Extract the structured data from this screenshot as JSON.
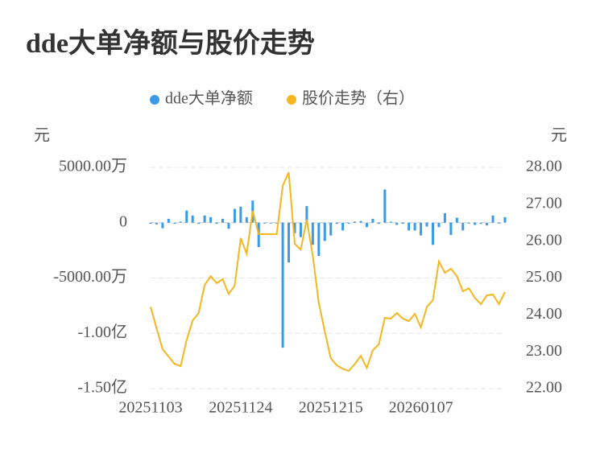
{
  "chart_data": {
    "type": "bar_line",
    "title": "dde大单净额与股价走势",
    "y_unit": "元",
    "y2_unit": "元",
    "categories": [
      "20251103",
      null,
      null,
      null,
      null,
      null,
      null,
      null,
      null,
      null,
      null,
      null,
      null,
      null,
      null,
      "20251124",
      null,
      null,
      null,
      null,
      null,
      null,
      null,
      null,
      null,
      null,
      null,
      null,
      null,
      null,
      "20251215",
      null,
      null,
      null,
      null,
      null,
      null,
      null,
      null,
      null,
      null,
      null,
      null,
      null,
      null,
      "20260107",
      null,
      null,
      null,
      null,
      null,
      null,
      null,
      null,
      null,
      null,
      null,
      null,
      null,
      null
    ],
    "series": [
      {
        "name": "dde大单净额",
        "type": "bar",
        "color": "#3a9ae8",
        "values": [
          -100,
          -150,
          -500,
          350,
          -100,
          100,
          1100,
          650,
          -100,
          650,
          500,
          -100,
          350,
          -550,
          1250,
          1450,
          500,
          2000,
          -2200,
          0,
          0,
          0,
          -11300,
          -3600,
          -950,
          -1300,
          1500,
          -2000,
          -3000,
          -1650,
          -1150,
          -100,
          -700,
          -100,
          100,
          150,
          -400,
          350,
          -100,
          3000,
          100,
          -200,
          -100,
          -700,
          -700,
          -1150,
          -350,
          -2000,
          -400,
          850,
          -1100,
          450,
          -700,
          -50,
          -200,
          -100,
          -250,
          650,
          -50,
          500
        ]
      },
      {
        "name": "股价走势（右）",
        "type": "line",
        "axis": "y2",
        "color": "#f5b720",
        "values": [
          24.22,
          23.63,
          23.07,
          22.87,
          22.67,
          22.61,
          23.31,
          23.85,
          24.05,
          24.81,
          25.05,
          24.86,
          24.97,
          24.57,
          24.79,
          26.08,
          25.66,
          26.82,
          26.19,
          26.19,
          26.19,
          26.19,
          27.5,
          27.87,
          25.93,
          25.77,
          26.58,
          25.6,
          24.33,
          23.55,
          22.83,
          22.63,
          22.54,
          22.48,
          22.67,
          22.89,
          22.56,
          23.04,
          23.2,
          23.92,
          23.9,
          24.05,
          23.9,
          23.83,
          24.03,
          23.66,
          24.22,
          24.4,
          25.45,
          25.14,
          25.25,
          25.05,
          24.64,
          24.72,
          24.46,
          24.29,
          24.53,
          24.55,
          24.29,
          24.62
        ]
      }
    ],
    "ylim": [
      -15000,
      5000
    ],
    "yticks": [
      {
        "value": -15000,
        "label": "-1.50亿"
      },
      {
        "value": -10000,
        "label": "-1.00亿"
      },
      {
        "value": -5000,
        "label": "-5000.00万"
      },
      0,
      {
        "value": 5000,
        "label": "5000.00万"
      }
    ],
    "y2lim": [
      22,
      28
    ],
    "y2ticks": [
      {
        "value": 22,
        "label": "22.00"
      },
      {
        "value": 23,
        "label": "23.00"
      },
      {
        "value": 24,
        "label": "24.00"
      },
      {
        "value": 25,
        "label": "25.00"
      },
      {
        "value": 26,
        "label": "26.00"
      },
      {
        "value": 27,
        "label": "27.00"
      },
      {
        "value": 28,
        "label": "28.00"
      }
    ],
    "grid": true,
    "legend": "top"
  }
}
